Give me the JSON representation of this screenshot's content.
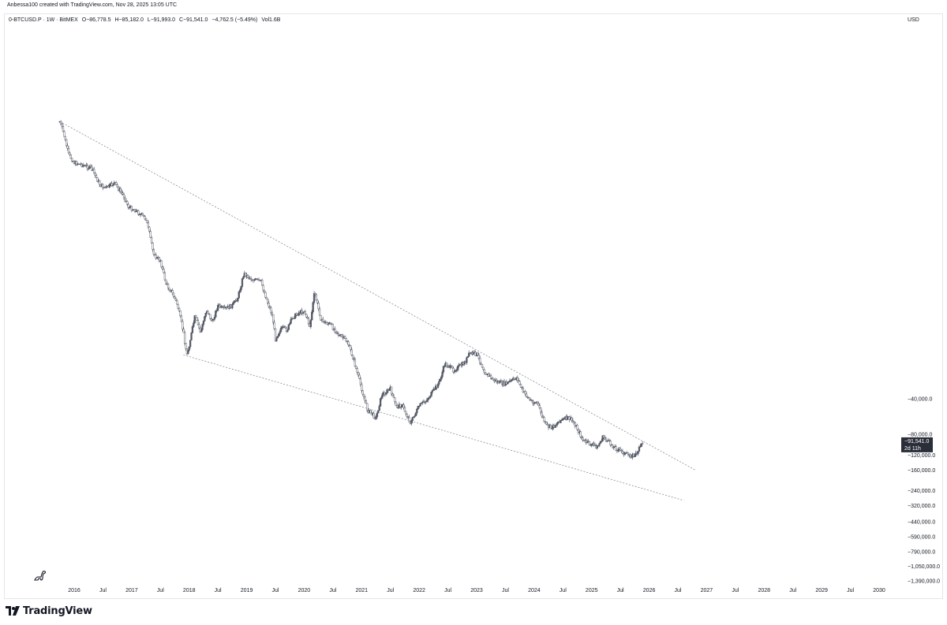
{
  "header": {
    "author_line": "Anbessa100 created with TradingView.com, Nov 28, 2025 13:05 UTC"
  },
  "legend": {
    "symbol": "0-BTCUSD.P · 1W · BitMEX",
    "open": "O−86,778.5",
    "high": "H−85,182.0",
    "low": "L−91,993.0",
    "close": "C−91,541.0",
    "change": "−4,762.5 (−5.49%)",
    "volume": "Vol1.6B"
  },
  "currency": "USD",
  "price_tag": {
    "value": "−91,541.0",
    "countdown": "2d 11h",
    "bg": "#2a2e39"
  },
  "footer": {
    "brand": "TradingView"
  },
  "colors": {
    "candle": "#555a66",
    "trendline": "#8a8e99",
    "axis_text": "#131722",
    "grid": "#ffffff"
  },
  "chart_data": {
    "type": "candlestick",
    "title": "",
    "xlabel": "",
    "ylabel": "",
    "x_ticks": [
      "2016",
      "Jul",
      "2017",
      "Jul",
      "2018",
      "Jul",
      "2019",
      "Jul",
      "2020",
      "Jul",
      "2021",
      "Jul",
      "2022",
      "Jul",
      "2023",
      "Jul",
      "2024",
      "Jul",
      "2025",
      "Jul",
      "2026",
      "Jul",
      "2027",
      "Jul",
      "2028",
      "Jul",
      "2029",
      "Jul",
      "2030"
    ],
    "x_tick_dates": [
      2016.0,
      2016.5,
      2017.0,
      2017.5,
      2018.0,
      2018.5,
      2019.0,
      2019.5,
      2020.0,
      2020.5,
      2021.0,
      2021.5,
      2022.0,
      2022.5,
      2023.0,
      2023.5,
      2024.0,
      2024.5,
      2025.0,
      2025.5,
      2026.0,
      2026.5,
      2027.0,
      2027.5,
      2028.0,
      2028.5,
      2029.0,
      2029.5,
      2030.0
    ],
    "y_scale": "log (inverted symbol, negative prices)",
    "y_ticks": [
      "−40,000.0",
      "−80,000.0",
      "−120,000.0",
      "−160,000.0",
      "−240,000.0",
      "−320,000.0",
      "−440,000.0",
      "−590,000.0",
      "−790,000.0",
      "−1,050,000.0",
      "−1,390,000.0"
    ],
    "y_tick_values": [
      -40000,
      -80000,
      -120000,
      -160000,
      -240000,
      -320000,
      -440000,
      -590000,
      -790000,
      -1050000,
      -1390000
    ],
    "series": [
      {
        "kind": "price",
        "points": [
          [
            2015.75,
            -180
          ],
          [
            2015.82,
            -230
          ],
          [
            2015.9,
            -340
          ],
          [
            2016.0,
            -400
          ],
          [
            2016.15,
            -420
          ],
          [
            2016.3,
            -450
          ],
          [
            2016.45,
            -620
          ],
          [
            2016.55,
            -660
          ],
          [
            2016.7,
            -600
          ],
          [
            2016.85,
            -750
          ],
          [
            2016.95,
            -960
          ],
          [
            2017.05,
            -1000
          ],
          [
            2017.15,
            -1100
          ],
          [
            2017.25,
            -1200
          ],
          [
            2017.4,
            -2500
          ],
          [
            2017.5,
            -2700
          ],
          [
            2017.6,
            -4300
          ],
          [
            2017.7,
            -5000
          ],
          [
            2017.8,
            -6500
          ],
          [
            2017.9,
            -11000
          ],
          [
            2017.96,
            -17000
          ],
          [
            2018.0,
            -14000
          ],
          [
            2018.1,
            -8000
          ],
          [
            2018.2,
            -11000
          ],
          [
            2018.3,
            -7000
          ],
          [
            2018.4,
            -9000
          ],
          [
            2018.5,
            -6500
          ],
          [
            2018.6,
            -7000
          ],
          [
            2018.75,
            -6500
          ],
          [
            2018.85,
            -5500
          ],
          [
            2018.95,
            -3500
          ],
          [
            2019.05,
            -3800
          ],
          [
            2019.25,
            -4100
          ],
          [
            2019.35,
            -5800
          ],
          [
            2019.45,
            -8000
          ],
          [
            2019.5,
            -12500
          ],
          [
            2019.6,
            -10000
          ],
          [
            2019.7,
            -10500
          ],
          [
            2019.8,
            -8200
          ],
          [
            2019.9,
            -7500
          ],
          [
            2020.0,
            -7200
          ],
          [
            2020.1,
            -9800
          ],
          [
            2020.18,
            -5000
          ],
          [
            2020.3,
            -8800
          ],
          [
            2020.45,
            -9300
          ],
          [
            2020.6,
            -11500
          ],
          [
            2020.75,
            -13000
          ],
          [
            2020.85,
            -18000
          ],
          [
            2020.97,
            -29000
          ],
          [
            2021.1,
            -50000
          ],
          [
            2021.25,
            -58000
          ],
          [
            2021.35,
            -37000
          ],
          [
            2021.5,
            -33000
          ],
          [
            2021.6,
            -47000
          ],
          [
            2021.7,
            -45000
          ],
          [
            2021.85,
            -64000
          ],
          [
            2022.0,
            -46000
          ],
          [
            2022.15,
            -40000
          ],
          [
            2022.35,
            -29000
          ],
          [
            2022.45,
            -20000
          ],
          [
            2022.6,
            -23000
          ],
          [
            2022.8,
            -19500
          ],
          [
            2022.88,
            -16500
          ],
          [
            2023.0,
            -16800
          ],
          [
            2023.15,
            -24000
          ],
          [
            2023.3,
            -28000
          ],
          [
            2023.5,
            -30000
          ],
          [
            2023.7,
            -26500
          ],
          [
            2023.8,
            -34500
          ],
          [
            2023.95,
            -42000
          ],
          [
            2024.05,
            -43000
          ],
          [
            2024.2,
            -67000
          ],
          [
            2024.3,
            -71000
          ],
          [
            2024.45,
            -61000
          ],
          [
            2024.6,
            -58000
          ],
          [
            2024.7,
            -64000
          ],
          [
            2024.85,
            -90000
          ],
          [
            2024.95,
            -96000
          ],
          [
            2025.1,
            -102000
          ],
          [
            2025.2,
            -84000
          ],
          [
            2025.3,
            -94000
          ],
          [
            2025.45,
            -108000
          ],
          [
            2025.6,
            -118000
          ],
          [
            2025.75,
            -122000
          ],
          [
            2025.83,
            -106000
          ],
          [
            2025.9,
            -91541
          ]
        ]
      }
    ],
    "trendlines": [
      {
        "name": "",
        "style": "dashed",
        "from": [
          2015.75,
          -180
        ],
        "to": [
          2026.8,
          -160000
        ]
      },
      {
        "name": "",
        "style": "dashed",
        "from": [
          2017.9,
          -17000
        ],
        "to": [
          2026.6,
          -290000
        ]
      }
    ]
  }
}
